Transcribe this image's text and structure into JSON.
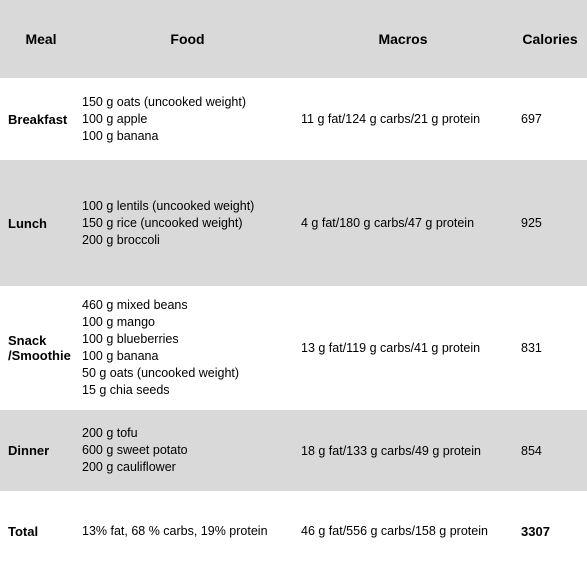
{
  "headers": {
    "meal": "Meal",
    "food": "Food",
    "macros": "Macros",
    "calories": "Calories"
  },
  "rows": [
    {
      "meal": "Breakfast",
      "foods": [
        "150 g oats (uncooked weight)",
        "100 g apple",
        "100 g banana"
      ],
      "macros": "11 g fat/124 g carbs/21 g protein",
      "calories": "697"
    },
    {
      "meal": "Lunch",
      "foods": [
        "100 g lentils (uncooked weight)",
        "150 g rice (uncooked weight)",
        "200 g broccoli"
      ],
      "macros": "4 g fat/180 g carbs/47 g protein",
      "calories": "925"
    },
    {
      "meal_line1": "Snack",
      "meal_line2": "/Smoothie",
      "foods": [
        "460 g mixed beans",
        "100 g mango",
        "100 g blueberries",
        "100 g banana",
        "50 g oats (uncooked weight)",
        "15 g chia seeds"
      ],
      "macros": "13 g fat/119 g carbs/41 g protein",
      "calories": "831"
    },
    {
      "meal": "Dinner",
      "foods": [
        "200 g tofu",
        "600 g sweet potato",
        "200 g cauliflower"
      ],
      "macros": "18 g fat/133 g carbs/49 g protein",
      "calories": "854"
    }
  ],
  "total": {
    "label": "Total",
    "ratio": "13% fat, 68 % carbs, 19% protein",
    "macros": "46 g fat/556 g carbs/158 g protein",
    "calories": "3307"
  }
}
